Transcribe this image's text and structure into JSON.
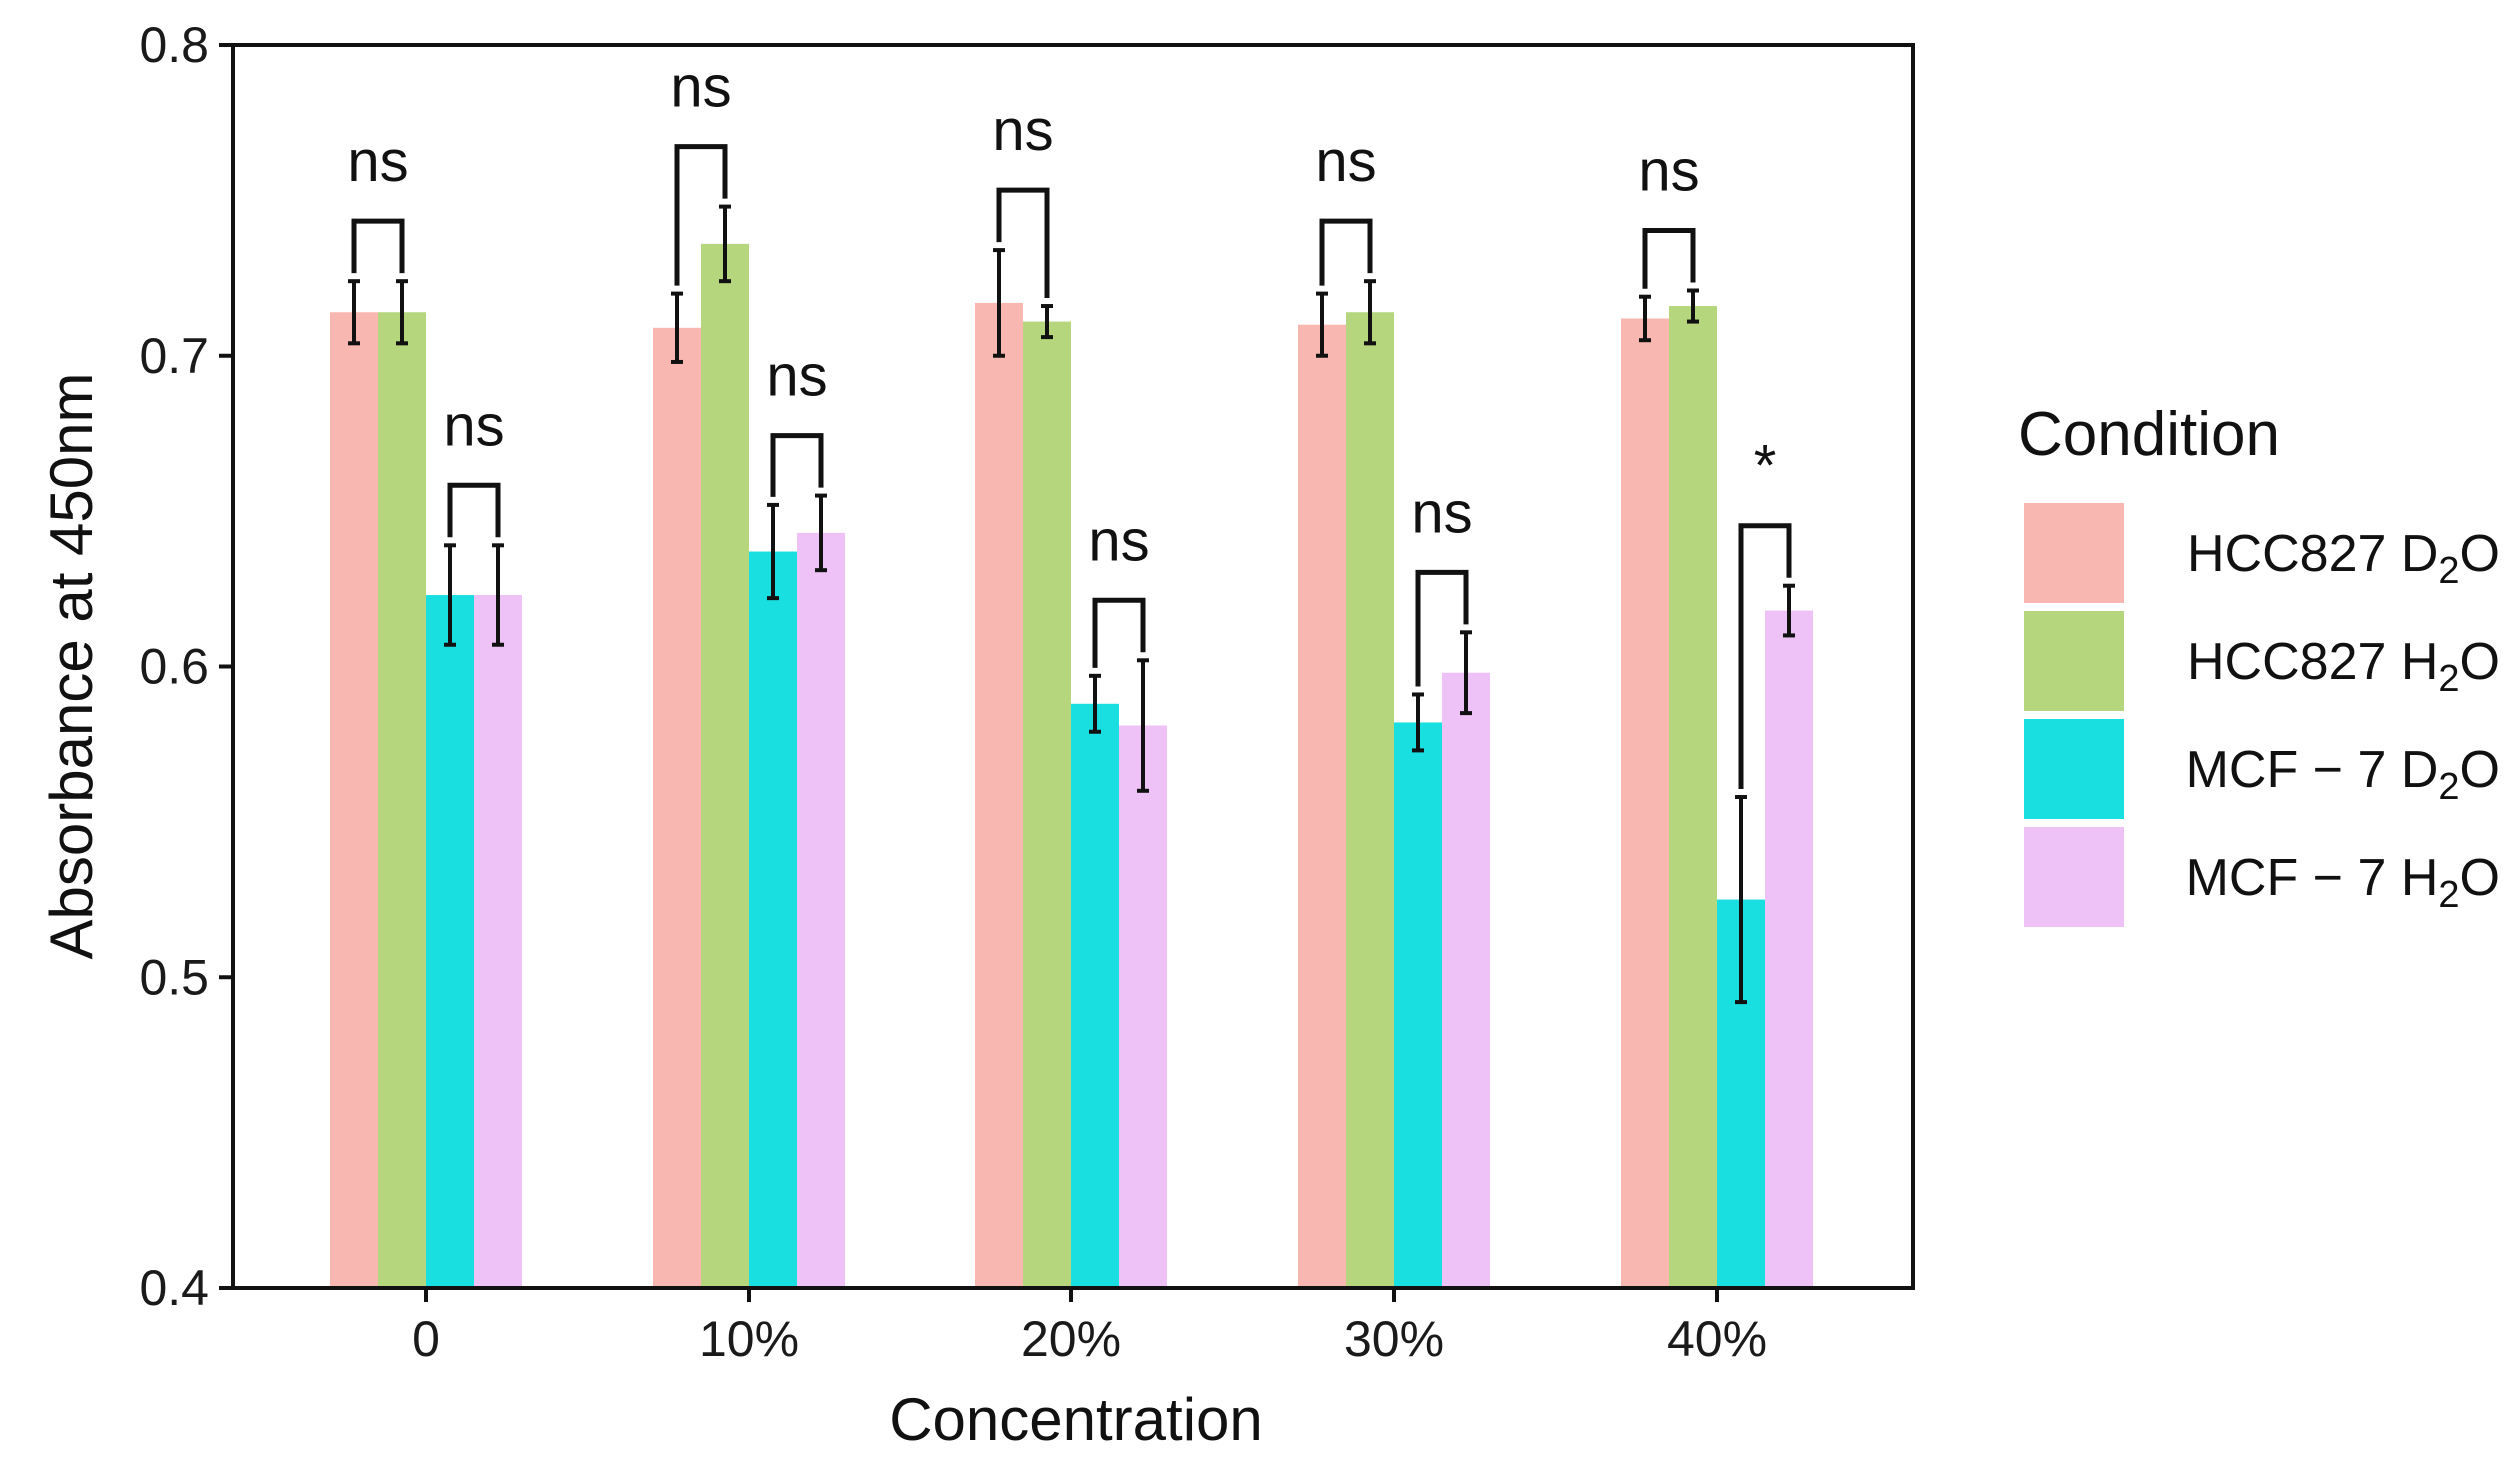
{
  "chart_data": {
    "type": "bar",
    "title": "",
    "xlabel": "Concentration",
    "ylabel": "Absorbance at 450nm",
    "ylim": [
      0.4,
      0.8
    ],
    "yticks": [
      "0.4",
      "0.5",
      "0.6",
      "0.7",
      "0.8"
    ],
    "categories": [
      "0",
      "10%",
      "20%",
      "30%",
      "40%"
    ],
    "series": [
      {
        "name": "HCC827 D2O",
        "label_main": "HCC827 D",
        "label_sub": "2",
        "label_tail": "O",
        "color": "#F8B7B0",
        "values": [
          0.714,
          0.709,
          0.717,
          0.71,
          0.712
        ],
        "errors": [
          0.01,
          0.011,
          0.017,
          0.01,
          0.007
        ]
      },
      {
        "name": "HCC827 H2O",
        "label_main": "HCC827 H",
        "label_sub": "2",
        "label_tail": "O",
        "color": "#B5D67C",
        "values": [
          0.714,
          0.736,
          0.711,
          0.714,
          0.716
        ],
        "errors": [
          0.01,
          0.012,
          0.005,
          0.01,
          0.005
        ]
      },
      {
        "name": "MCF-7 D2O",
        "label_main": "MCF − 7 D",
        "label_sub": "2",
        "label_tail": "O",
        "color": "#1ADFE0",
        "values": [
          0.623,
          0.637,
          0.588,
          0.582,
          0.525
        ],
        "errors": [
          0.016,
          0.015,
          0.009,
          0.009,
          0.033
        ]
      },
      {
        "name": "MCF-7 H2O",
        "label_main": "MCF − 7 H",
        "label_sub": "2",
        "label_tail": "O",
        "color": "#EEC1F7",
        "values": [
          0.623,
          0.643,
          0.581,
          0.598,
          0.618
        ],
        "errors": [
          0.016,
          0.012,
          0.021,
          0.013,
          0.008
        ]
      }
    ],
    "comparisons": [
      {
        "category": 0,
        "pair": [
          0,
          1
        ],
        "label": "ns"
      },
      {
        "category": 0,
        "pair": [
          2,
          3
        ],
        "label": "ns"
      },
      {
        "category": 1,
        "pair": [
          0,
          1
        ],
        "label": "ns"
      },
      {
        "category": 1,
        "pair": [
          2,
          3
        ],
        "label": "ns"
      },
      {
        "category": 2,
        "pair": [
          0,
          1
        ],
        "label": "ns"
      },
      {
        "category": 2,
        "pair": [
          2,
          3
        ],
        "label": "ns"
      },
      {
        "category": 3,
        "pair": [
          0,
          1
        ],
        "label": "ns"
      },
      {
        "category": 3,
        "pair": [
          2,
          3
        ],
        "label": "ns"
      },
      {
        "category": 4,
        "pair": [
          0,
          1
        ],
        "label": "ns"
      },
      {
        "category": 4,
        "pair": [
          2,
          3
        ],
        "label": "*"
      }
    ],
    "legend": {
      "title": "Condition",
      "position": "right"
    },
    "grid": false
  }
}
